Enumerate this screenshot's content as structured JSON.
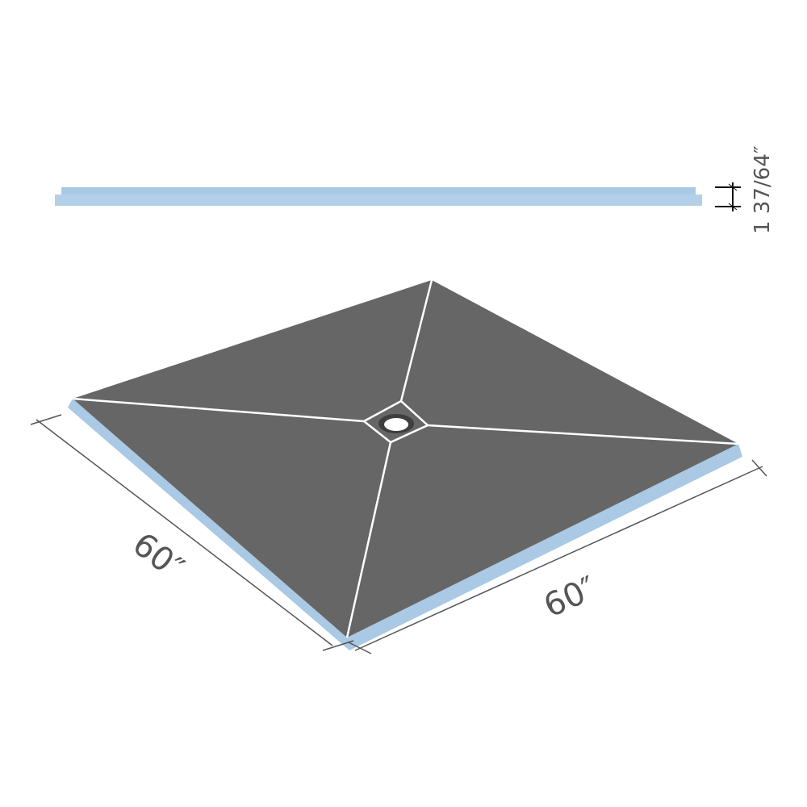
{
  "dimensions": {
    "thickness": "1 37/64″",
    "width_left": "60″",
    "width_right": "60″"
  },
  "colors": {
    "foam": "#a9c9e4",
    "membrane": "#666666",
    "seam": "#ffffff",
    "dimension_line": "#555555"
  }
}
